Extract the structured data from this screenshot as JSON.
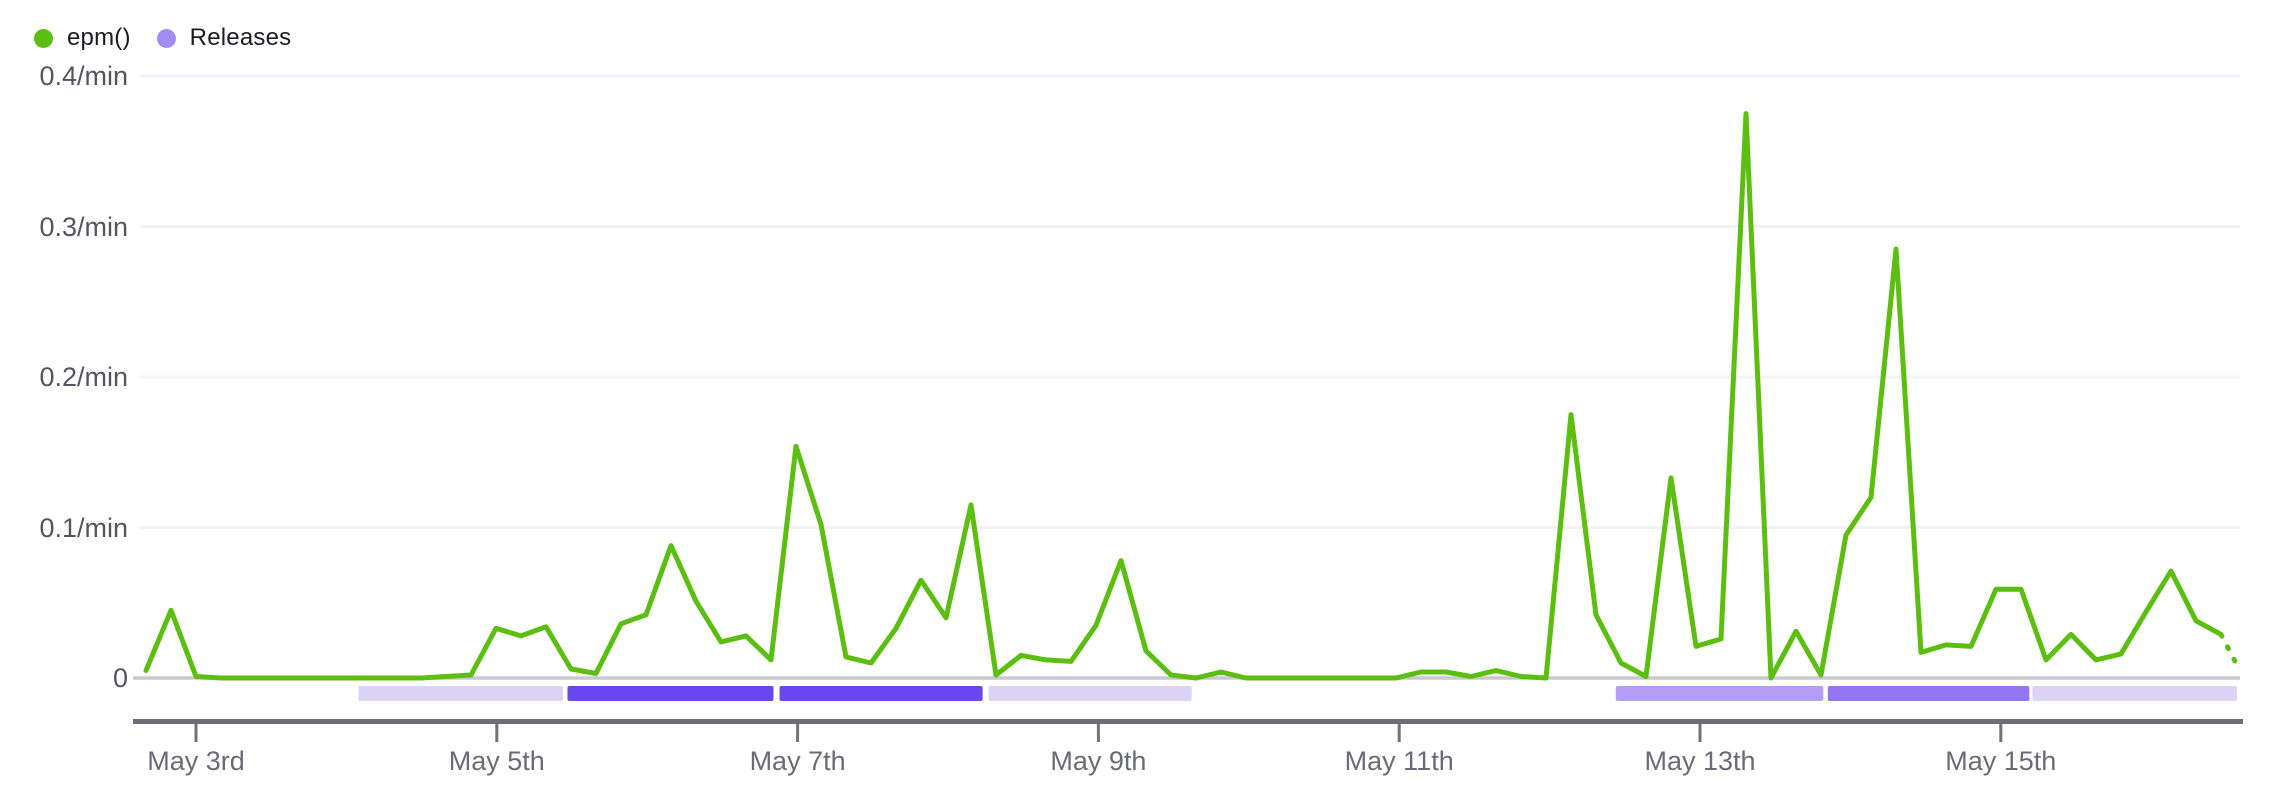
{
  "legend": {
    "items": [
      {
        "label": "epm()",
        "color": "#5cbe10"
      },
      {
        "label": "Releases",
        "color": "#a18ef2"
      }
    ]
  },
  "chart_data": {
    "type": "line",
    "title": "",
    "series_name": "epm()",
    "unit": "/min",
    "ylim": [
      0,
      0.4
    ],
    "grid": "horizontal",
    "legend_position": "top-left",
    "line_color": "#5cbe10",
    "zero_line_color": "#c9c8d0",
    "axis_line_color": "#6e6d78",
    "grid_color": "#f3f2f6",
    "x_start": "May 2 16:00",
    "x_end": "May 16 15:00",
    "point_interval_hours": 4,
    "dashed_from_index": 83,
    "points": [
      [
        0,
        0.005
      ],
      [
        4,
        0.045
      ],
      [
        8,
        0.001
      ],
      [
        12,
        0
      ],
      [
        16,
        0
      ],
      [
        20,
        0
      ],
      [
        24,
        0
      ],
      [
        28,
        0
      ],
      [
        32,
        0
      ],
      [
        36,
        0
      ],
      [
        40,
        0
      ],
      [
        44,
        0
      ],
      [
        48,
        0.001
      ],
      [
        52,
        0.002
      ],
      [
        56,
        0.033
      ],
      [
        60,
        0.028
      ],
      [
        64,
        0.034
      ],
      [
        68,
        0.006
      ],
      [
        72,
        0.003
      ],
      [
        76,
        0.036
      ],
      [
        80,
        0.042
      ],
      [
        84,
        0.088
      ],
      [
        88,
        0.051
      ],
      [
        92,
        0.024
      ],
      [
        96,
        0.028
      ],
      [
        100,
        0.012
      ],
      [
        104,
        0.154
      ],
      [
        108,
        0.102
      ],
      [
        112,
        0.014
      ],
      [
        116,
        0.01
      ],
      [
        120,
        0.033
      ],
      [
        124,
        0.065
      ],
      [
        128,
        0.04
      ],
      [
        132,
        0.115
      ],
      [
        136,
        0.002
      ],
      [
        140,
        0.015
      ],
      [
        144,
        0.012
      ],
      [
        148,
        0.011
      ],
      [
        152,
        0.035
      ],
      [
        156,
        0.078
      ],
      [
        160,
        0.018
      ],
      [
        164,
        0.002
      ],
      [
        168,
        0
      ],
      [
        172,
        0.004
      ],
      [
        176,
        0
      ],
      [
        180,
        0
      ],
      [
        184,
        0
      ],
      [
        188,
        0
      ],
      [
        192,
        0
      ],
      [
        196,
        0
      ],
      [
        200,
        0
      ],
      [
        204,
        0.004
      ],
      [
        208,
        0.004
      ],
      [
        212,
        0.001
      ],
      [
        216,
        0.005
      ],
      [
        220,
        0.001
      ],
      [
        224,
        0
      ],
      [
        228,
        0.175
      ],
      [
        232,
        0.042
      ],
      [
        236,
        0.01
      ],
      [
        240,
        0.001
      ],
      [
        244,
        0.133
      ],
      [
        248,
        0.021
      ],
      [
        252,
        0.026
      ],
      [
        256,
        0.375
      ],
      [
        260,
        0
      ],
      [
        264,
        0.031
      ],
      [
        268,
        0.002
      ],
      [
        272,
        0.095
      ],
      [
        276,
        0.12
      ],
      [
        280,
        0.285
      ],
      [
        284,
        0.017
      ],
      [
        288,
        0.022
      ],
      [
        292,
        0.021
      ],
      [
        296,
        0.059
      ],
      [
        300,
        0.059
      ],
      [
        304,
        0.012
      ],
      [
        308,
        0.029
      ],
      [
        312,
        0.012
      ],
      [
        316,
        0.016
      ],
      [
        320,
        0.044
      ],
      [
        324,
        0.071
      ],
      [
        328,
        0.038
      ],
      [
        332,
        0.029
      ],
      [
        335,
        0.005
      ]
    ],
    "y_ticks": [
      {
        "value": 0.4,
        "label": "0.4/min"
      },
      {
        "value": 0.3,
        "label": "0.3/min"
      },
      {
        "value": 0.2,
        "label": "0.2/min"
      },
      {
        "value": 0.1,
        "label": "0.1/min"
      },
      {
        "value": 0,
        "label": "0"
      }
    ],
    "x_ticks": [
      {
        "day": 3,
        "label": "May 3rd"
      },
      {
        "day": 5,
        "label": "May 5th"
      },
      {
        "day": 7,
        "label": "May 7th"
      },
      {
        "day": 9,
        "label": "May 9th"
      },
      {
        "day": 11,
        "label": "May 11th"
      },
      {
        "day": 13,
        "label": "May 13th"
      },
      {
        "day": 15,
        "label": "May 15th"
      }
    ],
    "releases": {
      "label": "Releases",
      "palette": {
        "light": "#dcd4f7",
        "strong": "#6848ee",
        "medium": "#b3a0f6",
        "medium_dark": "#9377f0"
      },
      "segments": [
        {
          "start_day": 4.08,
          "end_day": 5.44,
          "tone": "light"
        },
        {
          "start_day": 5.47,
          "end_day": 6.84,
          "tone": "strong"
        },
        {
          "start_day": 6.88,
          "end_day": 8.23,
          "tone": "strong"
        },
        {
          "start_day": 8.27,
          "end_day": 9.62,
          "tone": "light"
        },
        {
          "start_day": 12.44,
          "end_day": 13.82,
          "tone": "medium"
        },
        {
          "start_day": 13.85,
          "end_day": 15.19,
          "tone": "medium_dark"
        },
        {
          "start_day": 15.21,
          "end_day": 16.57,
          "tone": "light"
        }
      ]
    }
  }
}
